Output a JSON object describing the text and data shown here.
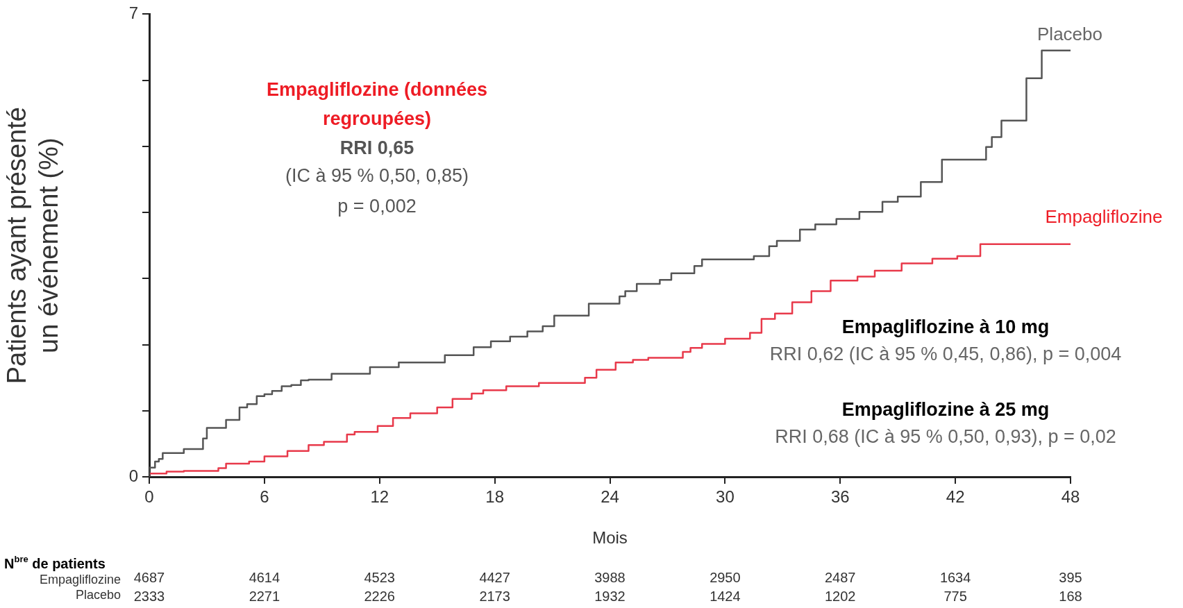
{
  "chart_data": {
    "type": "step",
    "xlabel": "Mois",
    "ylabel": "Patients ayant présenté un événement (%)",
    "xlim": [
      0,
      48
    ],
    "xticks": [
      0,
      6,
      12,
      18,
      24,
      30,
      36,
      42,
      48
    ],
    "ylim": [
      0,
      7
    ],
    "yticks": [
      0,
      {
        "value": 1,
        "label": null
      },
      {
        "value": 2,
        "label": null
      },
      {
        "value": 3,
        "label": null
      },
      {
        "value": 4,
        "label": null
      },
      {
        "value": 5,
        "label": null
      },
      {
        "value": 6,
        "label": null
      },
      7
    ],
    "grid": false,
    "legend": false,
    "marker": "none",
    "line_style": "solid",
    "series": [
      {
        "name": "Placebo",
        "color": "#555555",
        "x": [
          0,
          0.3,
          0.5,
          0.7,
          1.8,
          2.8,
          3.0,
          4.0,
          4.7,
          5.1,
          5.6,
          6.0,
          6.4,
          6.9,
          7.4,
          7.9,
          8.3,
          9.5,
          11.5,
          13.0,
          15.4,
          16.9,
          17.8,
          18.8,
          19.7,
          20.5,
          21.1,
          22.9,
          24.5,
          24.8,
          25.4,
          26.6,
          27.2,
          28.4,
          28.8,
          31.5,
          32.3,
          32.7,
          33.9,
          34.7,
          35.8,
          37.0,
          38.2,
          39.0,
          40.2,
          41.3,
          43.6,
          43.9,
          44.4,
          45.7,
          46.5,
          47.0,
          48
        ],
        "values": [
          0,
          0.14,
          0.23,
          0.27,
          0.36,
          0.42,
          0.58,
          0.74,
          0.86,
          1.05,
          1.1,
          1.22,
          1.25,
          1.3,
          1.37,
          1.39,
          1.46,
          1.47,
          1.56,
          1.66,
          1.73,
          1.84,
          1.96,
          2.05,
          2.12,
          2.2,
          2.28,
          2.44,
          2.62,
          2.73,
          2.81,
          2.92,
          2.98,
          3.08,
          3.19,
          3.29,
          3.34,
          3.49,
          3.57,
          3.74,
          3.82,
          3.9,
          4.01,
          4.16,
          4.24,
          4.46,
          4.8,
          4.99,
          5.14,
          5.39,
          6.03,
          6.45,
          6.45
        ]
      },
      {
        "name": "Empagliflozine",
        "color": "#e8394a",
        "x": [
          0,
          0.9,
          1.8,
          3.6,
          4.0,
          5.2,
          6.0,
          7.2,
          8.3,
          9.1,
          10.3,
          10.7,
          11.9,
          12.7,
          13.6,
          15.0,
          15.8,
          16.8,
          17.4,
          18.6,
          20.3,
          22.7,
          23.3,
          24.3,
          25.2,
          26.0,
          27.8,
          28.2,
          28.8,
          30.0,
          31.3,
          31.9,
          32.6,
          33.5,
          34.5,
          35.5,
          36.9,
          37.8,
          39.2,
          40.8,
          42.1,
          43.3,
          45.7,
          48
        ],
        "values": [
          0,
          0.05,
          0.08,
          0.09,
          0.13,
          0.2,
          0.23,
          0.31,
          0.39,
          0.48,
          0.53,
          0.64,
          0.68,
          0.77,
          0.89,
          0.96,
          1.05,
          1.18,
          1.26,
          1.31,
          1.37,
          1.42,
          1.5,
          1.62,
          1.73,
          1.77,
          1.8,
          1.89,
          1.95,
          2.01,
          2.09,
          2.18,
          2.39,
          2.47,
          2.64,
          2.81,
          2.97,
          3.03,
          3.12,
          3.23,
          3.3,
          3.34,
          3.52,
          3.52
        ]
      }
    ],
    "annotations": [
      "Empagliflozine (données regroupées)",
      "RRI 0,65",
      "(IC à 95 % 0,50, 0,85)",
      "p = 0,002",
      "Empagliflozine à 10 mg",
      "RRI 0,62 (IC à 95 % 0,45, 0,86), p = 0,004",
      "Empagliflozine à 25 mg",
      "RRI 0,68 (IC à 95 % 0,50, 0,93), p = 0,02",
      "N$^{bre}$ de patients",
      "Empagliflozine",
      "Placebo",
      "4687",
      "4614",
      "4523",
      "4427",
      "3988",
      "2950",
      "2487",
      "1634",
      "395",
      "2333",
      "2271",
      "2226",
      "2173",
      "1932",
      "1424",
      "1202",
      "775",
      "168"
    ]
  }
}
